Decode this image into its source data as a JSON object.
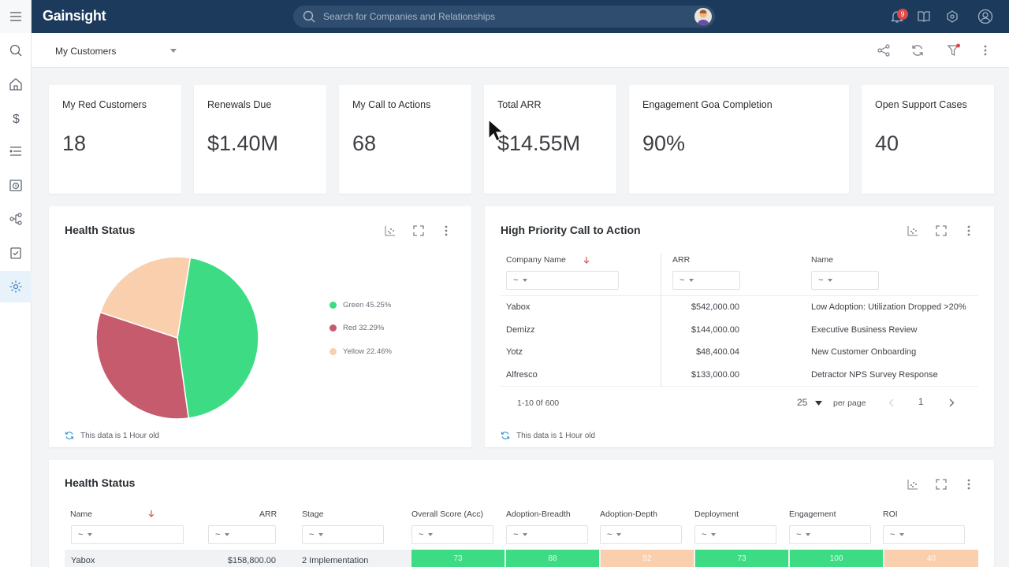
{
  "app": {
    "brand": "Gainsight",
    "search_placeholder": "Search for Companies and Relationships",
    "notification_count": "9"
  },
  "layout_select": "My Customers",
  "kpis": [
    {
      "label": "My Red Customers",
      "value": "18"
    },
    {
      "label": "Renewals Due",
      "value": "$1.40M"
    },
    {
      "label": "My Call to Actions",
      "value": "68"
    },
    {
      "label": "Total ARR",
      "value": "$14.55M"
    },
    {
      "label": "Engagement Goa Completion",
      "value": "90%"
    },
    {
      "label": "Open Support Cases",
      "value": "40"
    }
  ],
  "health_status_chart": {
    "title": "Health Status",
    "footer": "This data is 1 Hour old",
    "legend": [
      "Green 45.25%",
      "Red 32.29%",
      "Yellow 22.46%"
    ]
  },
  "chart_data": {
    "type": "pie",
    "categories": [
      "Green",
      "Red",
      "Yellow"
    ],
    "values": [
      45.25,
      32.29,
      22.46
    ],
    "colors": [
      "#3ddc84",
      "#c65b6e",
      "#f9cfae"
    ]
  },
  "cta_panel": {
    "title": "High Priority Call to Action",
    "columns": [
      "Company Name",
      "ARR",
      "Name"
    ],
    "filter_placeholder": "~",
    "rows": [
      {
        "company": "Yabox",
        "arr": "$542,000.00",
        "name": "Low Adoption: Utilization Dropped >20%"
      },
      {
        "company": "Demizz",
        "arr": "$144,000.00",
        "name": "Executive Business Review"
      },
      {
        "company": "Yotz",
        "arr": "$48,400.04",
        "name": "New Customer Onboarding"
      },
      {
        "company": "Alfresco",
        "arr": "$133,000.00",
        "name": "Detractor NPS Survey Response"
      }
    ],
    "pager": {
      "range": "1-10  0f  600",
      "page_size": "25",
      "per_page": "per page",
      "page": "1"
    },
    "footer": "This data is 1 Hour old"
  },
  "health_table": {
    "title": "Health Status",
    "columns": [
      "Name",
      "ARR",
      "Stage",
      "Overall Score (Acc)",
      "Adoption-Breadth",
      "Adoption-Depth",
      "Deployment",
      "Engagement",
      "ROI"
    ],
    "filter_placeholder": "~",
    "rows": [
      {
        "name": "Yabox",
        "arr": "$158,800.00",
        "stage": "2 Implementation",
        "scores": [
          "73",
          "88",
          "52",
          "73",
          "100",
          "40"
        ]
      }
    ]
  },
  "colors": {
    "accent": "#1b3a5c",
    "green": "#3ddc84",
    "red": "#c65b6e",
    "yellow": "#f9cfae",
    "sort_arrow": "#d9534f"
  }
}
